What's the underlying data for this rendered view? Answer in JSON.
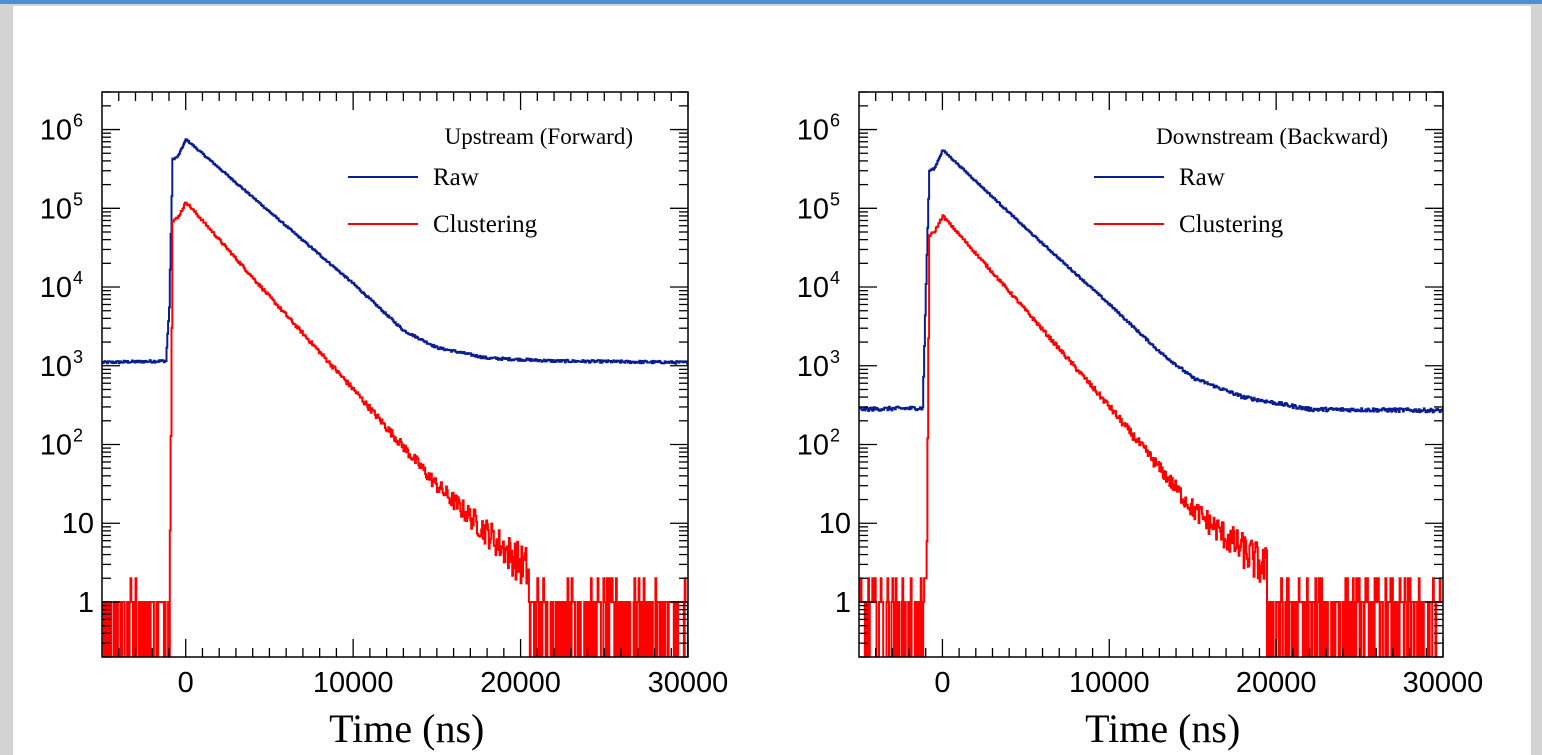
{
  "chart_data": [
    {
      "type": "line",
      "legend_title": "Upstream (Forward)",
      "xlabel": "Time (ns)",
      "ylabel": "",
      "yscale": "log",
      "xlim": [
        -5000,
        30000
      ],
      "ylim": [
        0.2,
        3000000
      ],
      "x_ticks": [
        0,
        10000,
        20000,
        30000
      ],
      "y_ticks": [
        {
          "value": 1,
          "base": "1",
          "exp": ""
        },
        {
          "value": 10,
          "base": "10",
          "exp": ""
        },
        {
          "value": 100,
          "base": "10",
          "exp": "2"
        },
        {
          "value": 1000,
          "base": "10",
          "exp": "3"
        },
        {
          "value": 10000,
          "base": "10",
          "exp": "4"
        },
        {
          "value": 100000,
          "base": "10",
          "exp": "5"
        },
        {
          "value": 1000000,
          "base": "10",
          "exp": "6"
        }
      ],
      "legend_position": "top-right",
      "series": [
        {
          "name": "Raw",
          "color": "#0b1e8f",
          "x": [
            -5000,
            -1200,
            -1000,
            -800,
            -500,
            0,
            5000,
            10000,
            13000,
            15000,
            18000,
            22000,
            30000
          ],
          "values": [
            1100,
            1150,
            5500,
            420000,
            450000,
            750000,
            90000,
            11000,
            2800,
            1700,
            1250,
            1150,
            1100
          ]
        },
        {
          "name": "Clustering",
          "color": "#ff0000",
          "x": [
            -5000,
            -1000,
            -800,
            -500,
            0,
            5000,
            10000,
            15000,
            20000,
            23000,
            25000,
            30000
          ],
          "values": [
            0.3,
            0.3,
            70000,
            75000,
            120000,
            7500,
            500,
            30,
            3,
            1,
            0.3,
            0.3
          ]
        }
      ]
    },
    {
      "type": "line",
      "legend_title": "Downstream (Backward)",
      "xlabel": "Time (ns)",
      "ylabel": "",
      "yscale": "log",
      "xlim": [
        -5000,
        30000
      ],
      "ylim": [
        0.2,
        3000000
      ],
      "x_ticks": [
        0,
        10000,
        20000,
        30000
      ],
      "y_ticks": [
        {
          "value": 1,
          "base": "1",
          "exp": ""
        },
        {
          "value": 10,
          "base": "10",
          "exp": ""
        },
        {
          "value": 100,
          "base": "10",
          "exp": "2"
        },
        {
          "value": 1000,
          "base": "10",
          "exp": "3"
        },
        {
          "value": 10000,
          "base": "10",
          "exp": "4"
        },
        {
          "value": 100000,
          "base": "10",
          "exp": "5"
        },
        {
          "value": 1000000,
          "base": "10",
          "exp": "6"
        }
      ],
      "legend_position": "top-right",
      "series": [
        {
          "name": "Raw",
          "color": "#0b1e8f",
          "x": [
            -5000,
            -1200,
            -1000,
            -800,
            -500,
            0,
            5000,
            10000,
            13000,
            15000,
            18000,
            22000,
            30000
          ],
          "values": [
            280,
            290,
            11000,
            300000,
            320000,
            550000,
            55000,
            6000,
            1500,
            700,
            400,
            280,
            270
          ]
        },
        {
          "name": "Clustering",
          "color": "#ff0000",
          "x": [
            -5000,
            -1000,
            -800,
            -500,
            0,
            5000,
            10000,
            15000,
            20000,
            22000,
            25000,
            30000
          ],
          "values": [
            0.3,
            0.3,
            45000,
            50000,
            80000,
            5000,
            300,
            15,
            2,
            1,
            0.3,
            0.3
          ]
        }
      ]
    }
  ]
}
